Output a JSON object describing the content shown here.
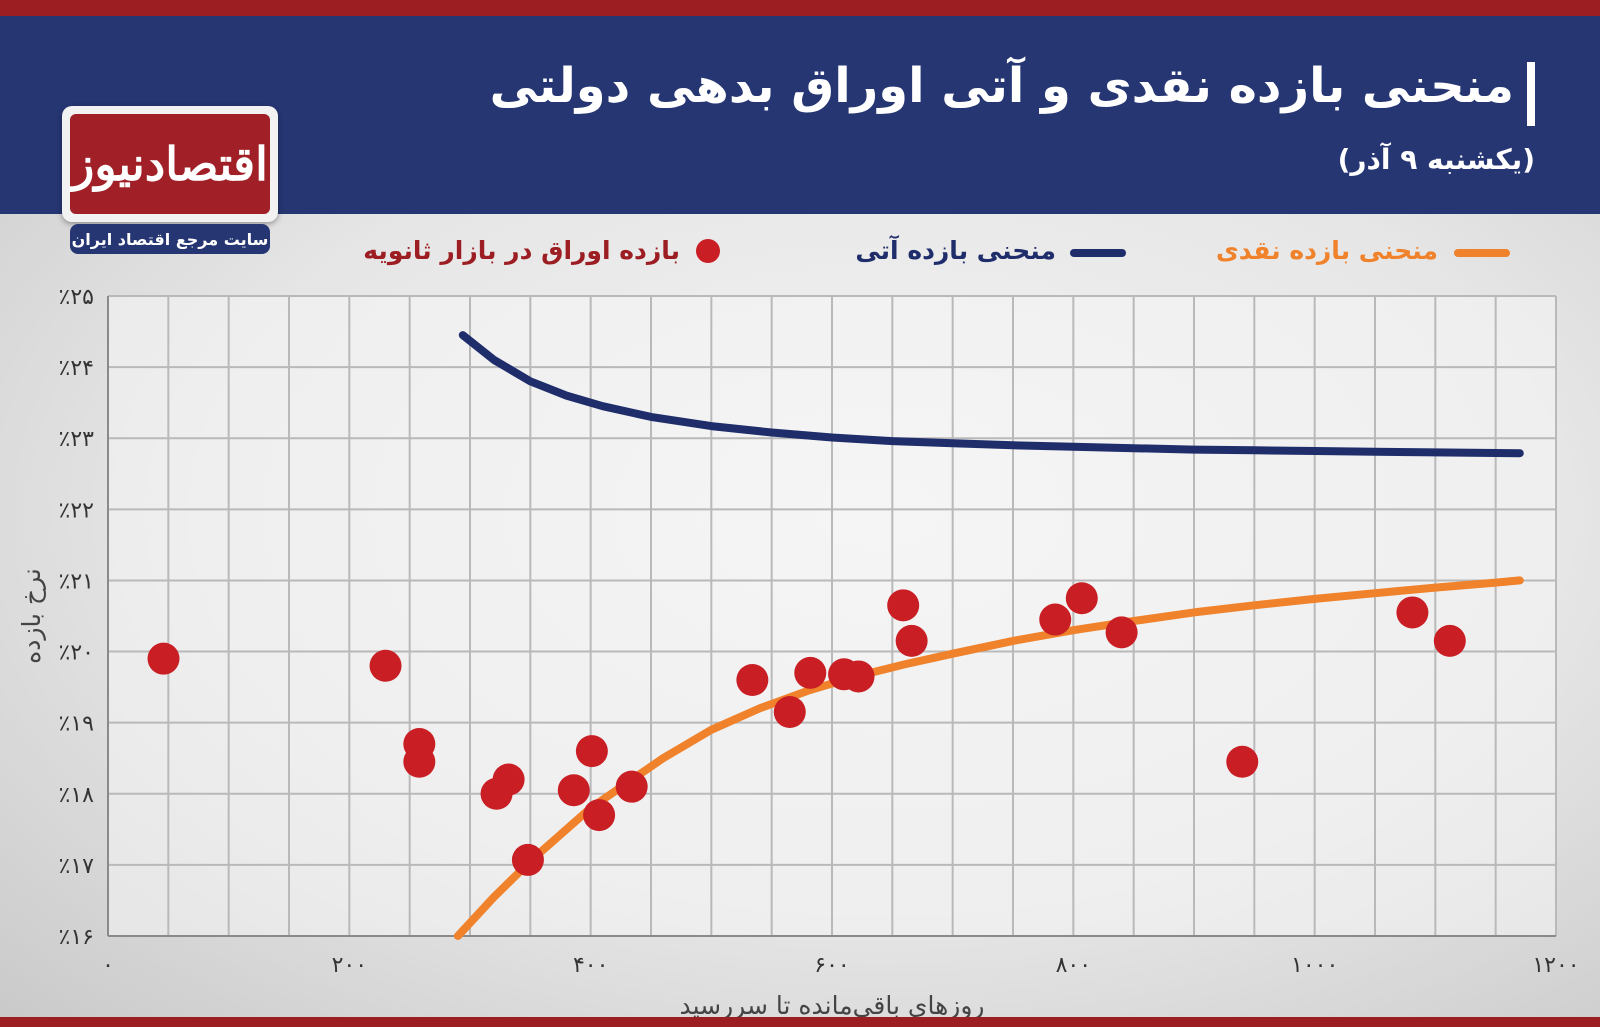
{
  "header": {
    "title": "منحنی بازده نقدی و آتی اوراق بدهی دولتی",
    "subtitle": "(یکشنبه ۹ آذر)"
  },
  "logo": {
    "name": "اقتصادنیوز",
    "tagline": "سایت مرجع اقتصاد ایران"
  },
  "legend": {
    "spot": "منحنی بازده نقدی",
    "forward": "منحنی بازده آتی",
    "bonds": "بازده اوراق در بازار ثانویه"
  },
  "colors": {
    "header": "#263673",
    "accent_red": "#9c1d22",
    "spot": "#f0822c",
    "forward": "#1f2d6b",
    "bonds": "#c81e24"
  },
  "chart_data": {
    "type": "scatter",
    "xlabel": "روزهای باقی‌مانده تا سررسید",
    "ylabel": "نرخ بازده",
    "xlim": [
      0,
      1200
    ],
    "ylim": [
      16,
      25
    ],
    "x_ticks": [
      {
        "value": 0,
        "label": "۰"
      },
      {
        "value": 200,
        "label": "۲۰۰"
      },
      {
        "value": 400,
        "label": "۴۰۰"
      },
      {
        "value": 600,
        "label": "۶۰۰"
      },
      {
        "value": 800,
        "label": "۸۰۰"
      },
      {
        "value": 1000,
        "label": "۱۰۰۰"
      },
      {
        "value": 1200,
        "label": "۱۲۰۰"
      }
    ],
    "y_ticks": [
      {
        "value": 16,
        "label": "٪۱۶"
      },
      {
        "value": 17,
        "label": "٪۱۷"
      },
      {
        "value": 18,
        "label": "٪۱۸"
      },
      {
        "value": 19,
        "label": "٪۱۹"
      },
      {
        "value": 20,
        "label": "٪۲۰"
      },
      {
        "value": 21,
        "label": "٪۲۱"
      },
      {
        "value": 22,
        "label": "٪۲۲"
      },
      {
        "value": 23,
        "label": "٪۲۳"
      },
      {
        "value": 24,
        "label": "٪۲۴"
      },
      {
        "value": 25,
        "label": "٪۲۵"
      }
    ],
    "grid": true,
    "series": [
      {
        "name": "منحنی بازده نقدی",
        "kind": "line",
        "x": [
          290,
          320,
          350,
          380,
          400,
          430,
          460,
          500,
          540,
          580,
          620,
          660,
          700,
          750,
          800,
          850,
          900,
          950,
          1000,
          1050,
          1100,
          1150,
          1170
        ],
        "y": [
          16.0,
          16.55,
          17.05,
          17.5,
          17.8,
          18.15,
          18.5,
          18.9,
          19.2,
          19.45,
          19.65,
          19.82,
          19.97,
          20.15,
          20.3,
          20.43,
          20.55,
          20.65,
          20.74,
          20.82,
          20.9,
          20.97,
          21.0
        ]
      },
      {
        "name": "منحنی بازده آتی",
        "kind": "line",
        "x": [
          294,
          320,
          350,
          380,
          410,
          450,
          500,
          550,
          600,
          650,
          700,
          750,
          800,
          850,
          900,
          950,
          1000,
          1050,
          1100,
          1170
        ],
        "y": [
          24.45,
          24.1,
          23.8,
          23.6,
          23.45,
          23.3,
          23.17,
          23.08,
          23.01,
          22.96,
          22.93,
          22.9,
          22.88,
          22.86,
          22.84,
          22.83,
          22.82,
          22.81,
          22.8,
          22.79
        ]
      },
      {
        "name": "بازده اوراق در بازار ثانویه",
        "kind": "scatter",
        "x": [
          46,
          230,
          258,
          258,
          322,
          332,
          348,
          386,
          401,
          407,
          434,
          534,
          565,
          582,
          610,
          622,
          659,
          666,
          785,
          807,
          840,
          940,
          1081,
          1112
        ],
        "y": [
          19.9,
          19.8,
          18.7,
          18.45,
          18.0,
          18.2,
          17.07,
          18.05,
          18.6,
          17.7,
          18.1,
          19.6,
          19.15,
          19.7,
          19.68,
          19.65,
          20.65,
          20.15,
          20.45,
          20.75,
          20.27,
          18.45,
          20.55,
          20.15
        ]
      }
    ]
  }
}
